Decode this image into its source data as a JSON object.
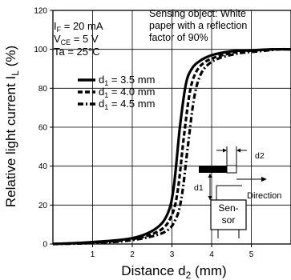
{
  "chart_data": {
    "type": "line",
    "title": "",
    "xlabel": "Distance d",
    "xlabel_sub": "2",
    "xlabel_unit": " (mm)",
    "ylabel": "Relative light current",
    "ylabel_sub": "L",
    "ylabel_unit": " (%)",
    "xlim": [
      0,
      6
    ],
    "ylim": [
      0,
      120
    ],
    "xticks": [
      1,
      2,
      3,
      4,
      5
    ],
    "yticks": [
      0,
      20,
      40,
      60,
      80,
      100,
      120
    ],
    "grid": true,
    "legend_position": "middle-left",
    "conditions": [
      {
        "sym": "I",
        "sub": "F",
        "val": " = 20 mA"
      },
      {
        "sym": "V",
        "sub": "CE",
        "val": " = 5 V"
      },
      {
        "sym": "Ta",
        "sub": "",
        "val": " = 25°C"
      }
    ],
    "annotation_lines": [
      "Sensing object: White",
      "paper with a reflection",
      "factor of 90%"
    ],
    "inset": {
      "d2": "d2",
      "d1": "d1",
      "direction": "Direction",
      "sensor_line1": "Sen-",
      "sensor_line2": "sor"
    },
    "series": [
      {
        "name": "d1 = 3.5 mm",
        "legend_sym": "d",
        "legend_sub": "1",
        "legend_val": " = 3.5 mm",
        "style": "solid",
        "x": [
          0,
          1.0,
          2.0,
          2.6,
          2.9,
          3.05,
          3.2,
          3.35,
          3.5,
          3.7,
          4.0,
          4.5,
          5.0,
          5.5,
          6.0
        ],
        "y": [
          0,
          1,
          3,
          8,
          16,
          30,
          60,
          82,
          90,
          94,
          97,
          99,
          99.5,
          100,
          100
        ]
      },
      {
        "name": "d1 = 4.0 mm",
        "legend_sym": "d",
        "legend_sub": "1",
        "legend_val": " = 4.0 mm",
        "style": "dashed",
        "x": [
          0,
          1.0,
          2.0,
          2.7,
          3.0,
          3.15,
          3.3,
          3.45,
          3.6,
          3.8,
          4.1,
          4.6,
          5.1,
          5.6,
          6.0
        ],
        "y": [
          0,
          0.8,
          2.5,
          7,
          15,
          28,
          55,
          78,
          88,
          93,
          96,
          98.5,
          99.5,
          100,
          100
        ]
      },
      {
        "name": "d1 = 4.5 mm",
        "legend_sym": "d",
        "legend_sub": "1",
        "legend_val": " = 4.5 mm",
        "style": "dashdot",
        "x": [
          0,
          1.0,
          2.0,
          2.8,
          3.1,
          3.25,
          3.4,
          3.55,
          3.7,
          3.9,
          4.2,
          4.7,
          5.2,
          5.7,
          6.0
        ],
        "y": [
          0,
          0.5,
          2,
          6,
          13,
          25,
          50,
          74,
          86,
          92,
          95.5,
          98,
          99,
          100,
          100
        ]
      }
    ]
  }
}
